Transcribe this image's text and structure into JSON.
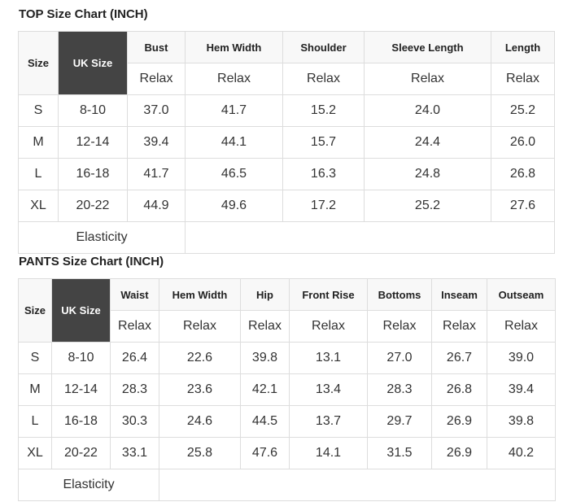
{
  "top": {
    "title": "TOP Size Chart (INCH)",
    "size_label": "Size",
    "uk_label": "UK Size",
    "columns": [
      "Bust",
      "Hem Width",
      "Shoulder",
      "Sleeve Length",
      "Length"
    ],
    "sub_label": "Relax",
    "rows": [
      {
        "size": "S",
        "uk": "8-10",
        "values": [
          "37.0",
          "41.7",
          "15.2",
          "24.0",
          "25.2"
        ]
      },
      {
        "size": "M",
        "uk": "12-14",
        "values": [
          "39.4",
          "44.1",
          "15.7",
          "24.4",
          "26.0"
        ]
      },
      {
        "size": "L",
        "uk": "16-18",
        "values": [
          "41.7",
          "46.5",
          "16.3",
          "24.8",
          "26.8"
        ]
      },
      {
        "size": "XL",
        "uk": "20-22",
        "values": [
          "44.9",
          "49.6",
          "17.2",
          "25.2",
          "27.6"
        ]
      }
    ],
    "elasticity_label": "Elasticity"
  },
  "pants": {
    "title": "PANTS Size Chart (INCH)",
    "size_label": "Size",
    "uk_label": "UK Size",
    "columns": [
      "Waist",
      "Hem Width",
      "Hip",
      "Front Rise",
      "Bottoms",
      "Inseam",
      "Outseam"
    ],
    "sub_label": "Relax",
    "rows": [
      {
        "size": "S",
        "uk": "8-10",
        "values": [
          "26.4",
          "22.6",
          "39.8",
          "13.1",
          "27.0",
          "26.7",
          "39.0"
        ]
      },
      {
        "size": "M",
        "uk": "12-14",
        "values": [
          "28.3",
          "23.6",
          "42.1",
          "13.4",
          "28.3",
          "26.8",
          "39.4"
        ]
      },
      {
        "size": "L",
        "uk": "16-18",
        "values": [
          "30.3",
          "24.6",
          "44.5",
          "13.7",
          "29.7",
          "26.9",
          "39.8"
        ]
      },
      {
        "size": "XL",
        "uk": "20-22",
        "values": [
          "33.1",
          "25.8",
          "47.6",
          "14.1",
          "31.5",
          "26.9",
          "40.2"
        ]
      }
    ],
    "elasticity_label": "Elasticity"
  }
}
